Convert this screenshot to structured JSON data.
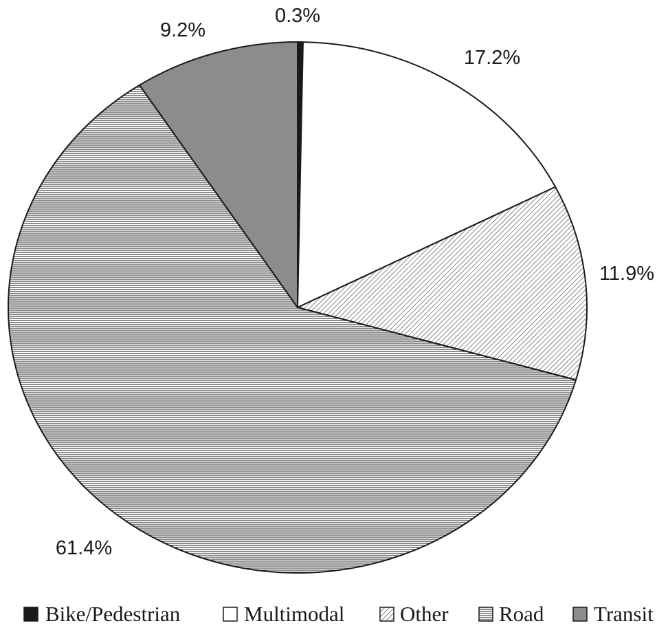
{
  "chart_data": {
    "type": "pie",
    "title": "",
    "legend_position": "bottom",
    "start_angle_deg": 0,
    "direction": "clockwise",
    "slices": [
      {
        "name": "Bike/Pedestrian",
        "value": 0.3,
        "label": "0.3%",
        "fill": "#1a1a1a",
        "pattern": "solid"
      },
      {
        "name": "Multimodal",
        "value": 17.2,
        "label": "17.2%",
        "fill": "#ffffff",
        "pattern": "solid"
      },
      {
        "name": "Other",
        "value": 11.9,
        "label": "11.9%",
        "fill": "#ffffff",
        "pattern": "diagonal"
      },
      {
        "name": "Road",
        "value": 61.4,
        "label": "61.4%",
        "fill": "#ffffff",
        "pattern": "horizontal"
      },
      {
        "name": "Transit",
        "value": 9.2,
        "label": "9.2%",
        "fill": "#8c8c8c",
        "pattern": "solid"
      }
    ]
  }
}
